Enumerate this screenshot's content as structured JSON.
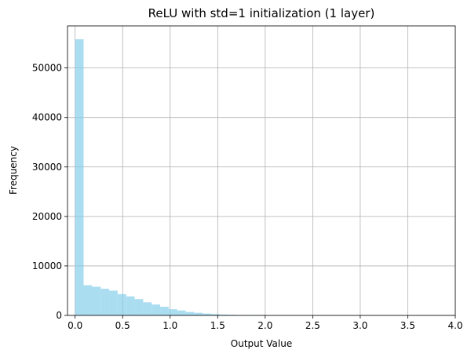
{
  "chart_data": {
    "type": "histogram",
    "title": "ReLU with std=1 initialization (1 layer)",
    "xlabel": "Output Value",
    "ylabel": "Frequency",
    "xlim": [
      -0.08,
      4.0
    ],
    "ylim": [
      0,
      58500
    ],
    "xticks": [
      0.0,
      0.5,
      1.0,
      1.5,
      2.0,
      2.5,
      3.0,
      3.5,
      4.0
    ],
    "xtick_labels": [
      "0.0",
      "0.5",
      "1.0",
      "1.5",
      "2.0",
      "2.5",
      "3.0",
      "3.5",
      "4.0"
    ],
    "yticks": [
      0,
      10000,
      20000,
      30000,
      40000,
      50000
    ],
    "ytick_labels": [
      "0",
      "10000",
      "20000",
      "30000",
      "40000",
      "50000"
    ],
    "grid": true,
    "bar_color": "#87CEEB",
    "bar_opacity": 0.7,
    "bin_start": 0.0,
    "bin_width": 0.0895,
    "counts": [
      55800,
      6100,
      5800,
      5400,
      5000,
      4300,
      3850,
      3300,
      2650,
      2200,
      1750,
      1250,
      1000,
      700,
      530,
      380,
      270,
      180,
      120,
      80,
      55,
      35,
      22,
      14,
      9,
      6,
      4,
      3,
      2,
      1,
      1,
      1,
      1,
      0,
      0,
      0,
      0,
      0,
      0,
      0,
      0,
      0
    ]
  }
}
